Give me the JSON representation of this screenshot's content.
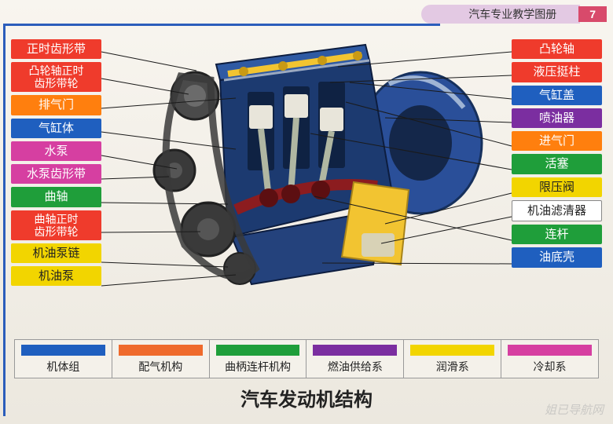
{
  "header": {
    "series": "汽车专业教学图册",
    "page": "7"
  },
  "title": "汽车发动机结构",
  "watermark": "姐已导航网",
  "engine": {
    "body_color": "#2a4f99",
    "block_color": "#1c3a70",
    "cover_color": "#f2c431",
    "piston_color": "#e8e5da",
    "crank_color": "#8c1c1f",
    "belt_color": "#3a3a3a",
    "highlight": "#dfe6ef"
  },
  "left_labels": [
    {
      "text": "正时齿形带",
      "bg": "#ef3b2c"
    },
    {
      "text": "凸轮轴正时\n齿形带轮",
      "bg": "#ef3b2c"
    },
    {
      "text": "排气门",
      "bg": "#ff7f0e"
    },
    {
      "text": "气缸体",
      "bg": "#1f5fbf"
    },
    {
      "text": "水泵",
      "bg": "#d63fa1"
    },
    {
      "text": "水泵齿形带",
      "bg": "#d63fa1"
    },
    {
      "text": "曲轴",
      "bg": "#1f9e3a"
    },
    {
      "text": "曲轴正时\n齿形带轮",
      "bg": "#ef3b2c"
    },
    {
      "text": "机油泵链",
      "bg": "#f2d500",
      "fg": "#222"
    },
    {
      "text": "机油泵",
      "bg": "#f2d500",
      "fg": "#222"
    }
  ],
  "right_labels": [
    {
      "text": "凸轮轴",
      "bg": "#ef3b2c"
    },
    {
      "text": "液压挺柱",
      "bg": "#ef3b2c"
    },
    {
      "text": "气缸盖",
      "bg": "#1f5fbf"
    },
    {
      "text": "喷油器",
      "bg": "#7b2ea0"
    },
    {
      "text": "进气门",
      "bg": "#ff7f0e"
    },
    {
      "text": "活塞",
      "bg": "#1f9e3a"
    },
    {
      "text": "限压阀",
      "bg": "#f2d500",
      "fg": "#222"
    },
    {
      "text": "机油滤清器",
      "bg": "#ffffff",
      "fg": "#222",
      "border": "#888"
    },
    {
      "text": "连杆",
      "bg": "#1f9e3a"
    },
    {
      "text": "油底壳",
      "bg": "#1f5fbf"
    }
  ],
  "legend": [
    {
      "label": "机体组",
      "color": "#1f5fbf"
    },
    {
      "label": "配气机构",
      "color": "#ef6a2c"
    },
    {
      "label": "曲柄连杆机构",
      "color": "#1f9e3a"
    },
    {
      "label": "燃油供给系",
      "color": "#7b2ea0"
    },
    {
      "label": "润滑系",
      "color": "#f2d500"
    },
    {
      "label": "冷却系",
      "color": "#d63fa1"
    }
  ],
  "leader_color": "#1a1a1a"
}
